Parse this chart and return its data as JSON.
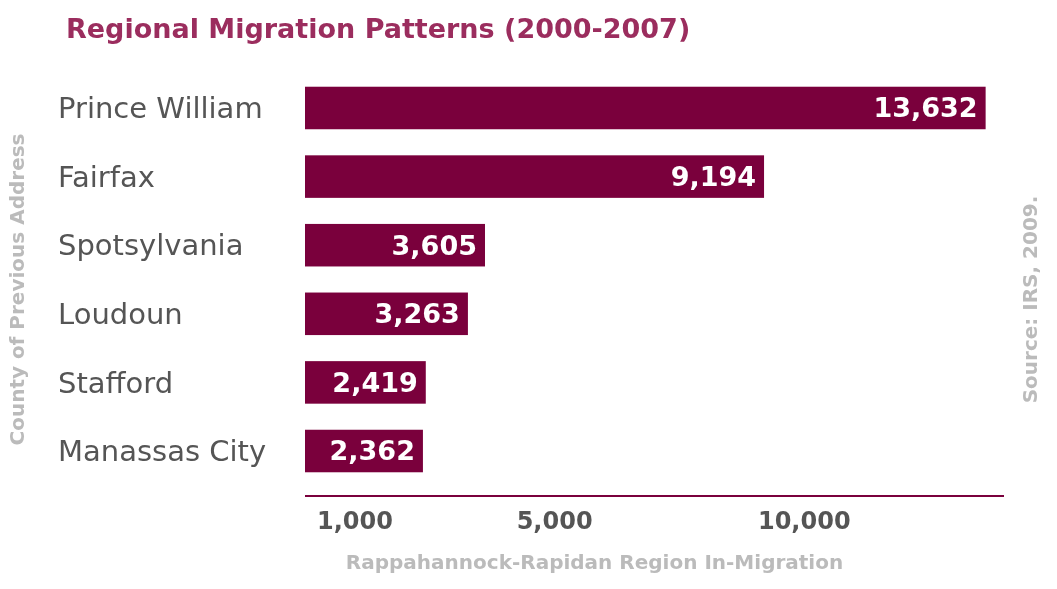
{
  "chart_data": {
    "type": "bar",
    "orientation": "horizontal",
    "title": "Regional Migration Patterns (2000-2007)",
    "xlabel": "Rappahannock-Rapidan Region In-Migration",
    "ylabel": "County of Previous Address",
    "annotations": [
      "Source:  IRS, 2009."
    ],
    "categories": [
      "Prince William",
      "Fairfax",
      "Spotsylvania",
      "Loudoun",
      "Stafford",
      "Manassas City"
    ],
    "values": [
      13632,
      9194,
      3605,
      3263,
      2419,
      2362
    ],
    "value_labels": [
      "13,632",
      "9,194",
      "3,605",
      "3,263",
      "2,419",
      "2,362"
    ],
    "color": "#7a003c",
    "xlim": [
      0,
      14000
    ],
    "xticks": [
      {
        "value": 1000,
        "label": "1,000"
      },
      {
        "value": 5000,
        "label": "5,000"
      },
      {
        "value": 10000,
        "label": "10,000"
      }
    ],
    "grid": false
  }
}
